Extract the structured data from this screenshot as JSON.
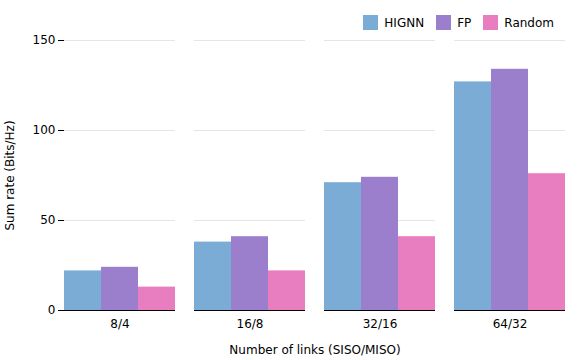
{
  "chart_data": {
    "type": "bar",
    "xlabel": "Number of links (SISO/MISO)",
    "ylabel": "Sum rate (Bits/Hz)",
    "categories": [
      "8/4",
      "16/8",
      "32/16",
      "64/32"
    ],
    "series": [
      {
        "name": "HIGNN",
        "color": "#7aacd6",
        "values": [
          22,
          38,
          71,
          127
        ]
      },
      {
        "name": "FP",
        "color": "#9b7fcc",
        "values": [
          24,
          41,
          74,
          134
        ]
      },
      {
        "name": "Random",
        "color": "#e87dc0",
        "values": [
          13,
          22,
          41,
          76
        ]
      }
    ],
    "ylim": [
      0,
      150
    ],
    "yticks": [
      0,
      50,
      100,
      150
    ],
    "grid": true,
    "legend": "upper right"
  }
}
